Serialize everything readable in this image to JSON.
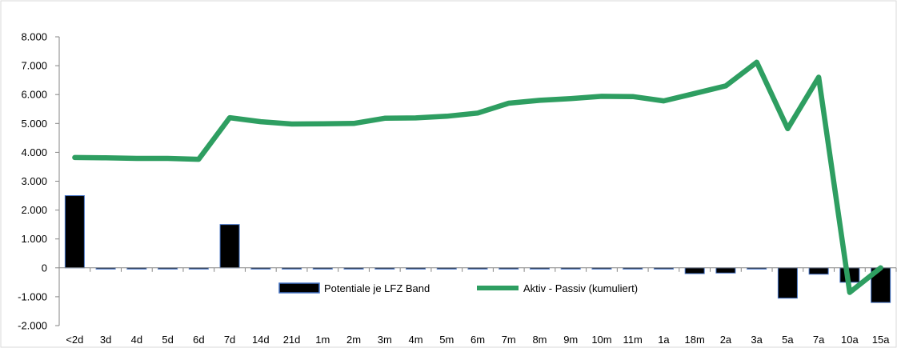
{
  "chart_data": {
    "type": "bar",
    "categories": [
      "<2d",
      "3d",
      "4d",
      "5d",
      "6d",
      "7d",
      "14d",
      "21d",
      "1m",
      "2m",
      "3m",
      "4m",
      "5m",
      "6m",
      "7m",
      "8m",
      "9m",
      "10m",
      "11m",
      "1a",
      "18m",
      "2a",
      "3a",
      "5a",
      "7a",
      "10a",
      "15a"
    ],
    "series": [
      {
        "name": "Potentiale je LFZ Band",
        "type": "bar",
        "values": [
          2500,
          0,
          0,
          0,
          0,
          1500,
          -20,
          -20,
          -20,
          -30,
          -30,
          -30,
          -30,
          -30,
          -30,
          -30,
          -30,
          -30,
          -20,
          -30,
          -200,
          -180,
          -30,
          -1050,
          -220,
          -500,
          -1200
        ]
      },
      {
        "name": "Aktiv - Passiv (kumuliert)",
        "type": "line",
        "values": [
          3820,
          3810,
          3790,
          3790,
          3760,
          5200,
          5060,
          4980,
          4990,
          5000,
          5180,
          5190,
          5250,
          5360,
          5700,
          5800,
          5860,
          5940,
          5930,
          5780,
          6040,
          6300,
          7120,
          4820,
          6600,
          -850,
          0
        ]
      }
    ],
    "yticks": [
      "8.000",
      "7.000",
      "6.000",
      "5.000",
      "4.000",
      "3.000",
      "2.000",
      "1.000",
      "0",
      "-1.000",
      "-2.000"
    ],
    "ylim": [
      -2000,
      8000
    ],
    "grid": false,
    "legend": "center",
    "colors": {
      "bar_fill": "#000000",
      "bar_edge": "#4472c4",
      "line": "#2e9e61"
    }
  }
}
